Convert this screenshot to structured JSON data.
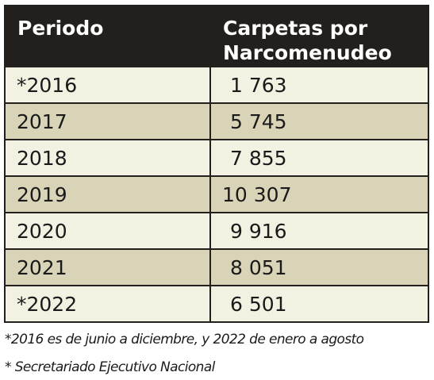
{
  "table": {
    "headers": {
      "period": "Periodo",
      "carpetas_line1": "Carpetas por",
      "carpetas_line2": "Narcomenudeo"
    },
    "rows": [
      {
        "period": "*2016",
        "value": "1 763"
      },
      {
        "period": "2017",
        "value": "5 745"
      },
      {
        "period": "2018",
        "value": "7 855"
      },
      {
        "period": "2019",
        "value": "10 307"
      },
      {
        "period": "2020",
        "value": "9 916"
      },
      {
        "period": "2021",
        "value": "8 051"
      },
      {
        "period": "*2022",
        "value": "6 501"
      }
    ]
  },
  "notes": {
    "period_note": "*2016 es de junio a diciembre, y 2022 de enero a agosto",
    "source": "* Secretariado Ejecutivo Nacional"
  },
  "colors": {
    "header_bg": "#231f1c",
    "row_light": "#f3f1e2",
    "row_dark": "#d9d4b7",
    "border": "#231f1c"
  }
}
